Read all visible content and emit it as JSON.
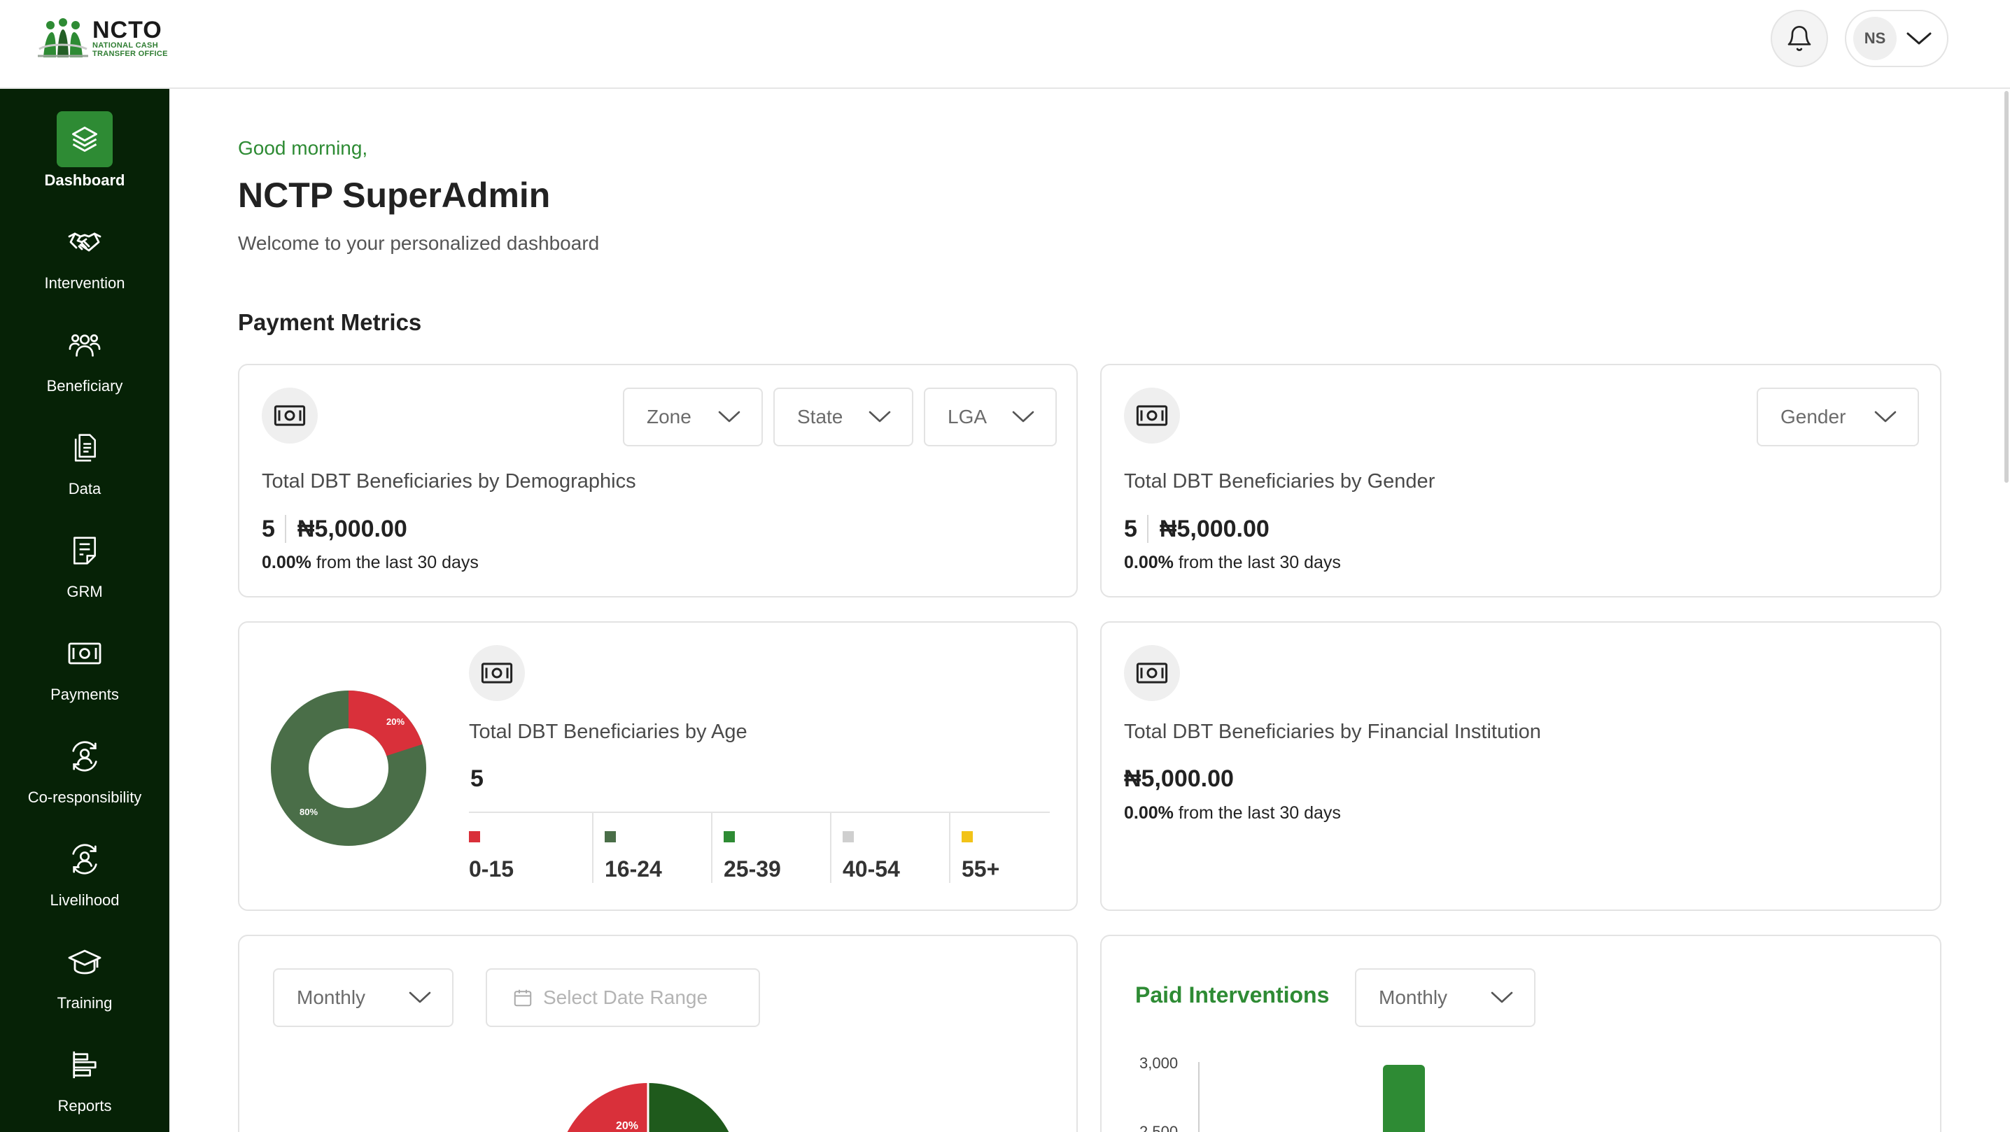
{
  "header": {
    "logo_title": "NCTO",
    "logo_subtitle_line1": "NATIONAL CASH",
    "logo_subtitle_line2": "TRANSFER OFFICE",
    "user_initials": "NS"
  },
  "sidebar": {
    "items": [
      {
        "label": "Dashboard",
        "icon": "layers-icon",
        "active": true
      },
      {
        "label": "Intervention",
        "icon": "handshake-icon"
      },
      {
        "label": "Beneficiary",
        "icon": "users-icon"
      },
      {
        "label": "Data",
        "icon": "documents-icon"
      },
      {
        "label": "GRM",
        "icon": "notes-icon"
      },
      {
        "label": "Payments",
        "icon": "money-icon"
      },
      {
        "label": "Co-responsibility",
        "icon": "user-cycle-icon"
      },
      {
        "label": "Livelihood",
        "icon": "user-cycle-icon"
      },
      {
        "label": "Training",
        "icon": "graduation-cap-icon"
      },
      {
        "label": "Reports",
        "icon": "reports-icon"
      }
    ]
  },
  "main": {
    "greeting": "Good morning,",
    "title": "NCTP SuperAdmin",
    "subtitle": "Welcome to your personalized dashboard",
    "section_title": "Payment Metrics"
  },
  "cards": {
    "demographics": {
      "filters": [
        "Zone",
        "State",
        "LGA"
      ],
      "label": "Total DBT Beneficiaries by Demographics",
      "count": "5",
      "amount": "₦5,000.00",
      "change_pct": "0.00%",
      "change_text": " from the last 30 days"
    },
    "gender": {
      "filter": "Gender",
      "label": "Total DBT Beneficiaries by Gender",
      "count": "5",
      "amount": "₦5,000.00",
      "change_pct": "0.00%",
      "change_text": " from the last 30 days"
    },
    "age": {
      "label": "Total DBT Beneficiaries by Age",
      "count": "5",
      "donut": [
        {
          "label": "20%",
          "value": 20,
          "color": "#d9303a"
        },
        {
          "label": "80%",
          "value": 80,
          "color": "#4a6e48"
        }
      ],
      "groups": [
        {
          "label": "0-15",
          "color": "#d9303a"
        },
        {
          "label": "16-24",
          "color": "#4a6e48"
        },
        {
          "label": "25-39",
          "color": "#2e8b34"
        },
        {
          "label": "40-54",
          "color": "#cfcfcf"
        },
        {
          "label": "55+",
          "color": "#f2c318"
        }
      ]
    },
    "financial": {
      "label": "Total DBT Beneficiaries by Financial Institution",
      "amount": "₦5,000.00",
      "change_pct": "0.00%",
      "change_text": " from the last 30 days"
    },
    "trend": {
      "period": "Monthly",
      "date_placeholder": "Select Date Range",
      "pie_label": "20%"
    },
    "paid": {
      "title": "Paid Interventions",
      "period": "Monthly",
      "ticks": [
        "3,000",
        "2,500"
      ]
    }
  },
  "chart_data": {
    "type": "bar",
    "title": "Paid Interventions",
    "y_ticks": [
      3000,
      2500
    ],
    "values": [
      3000
    ]
  }
}
